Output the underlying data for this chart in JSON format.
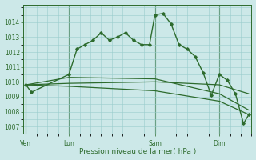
{
  "background_color": "#cce8e8",
  "grid_color": "#99cccc",
  "line_color": "#2d6b2d",
  "xlabel": "Pression niveau de la mer( hPa )",
  "ylim": [
    1006.5,
    1015.2
  ],
  "yticks": [
    1007,
    1008,
    1009,
    1010,
    1011,
    1012,
    1013,
    1014
  ],
  "day_labels": [
    "Ven",
    "Lun",
    "Sam",
    "Dim"
  ],
  "day_positions": [
    0,
    16,
    48,
    72
  ],
  "xlim": [
    -1,
    84
  ],
  "series1_x": [
    0,
    2,
    16,
    19,
    22,
    25,
    28,
    31,
    34,
    37,
    40,
    43,
    46,
    48,
    51,
    54,
    57,
    60,
    63,
    66,
    69,
    72,
    75,
    78,
    81,
    83
  ],
  "series1_y": [
    1009.8,
    1009.3,
    1010.5,
    1012.2,
    1012.5,
    1012.8,
    1013.3,
    1012.8,
    1013.0,
    1013.3,
    1012.8,
    1012.5,
    1012.5,
    1014.5,
    1014.6,
    1013.9,
    1012.5,
    1012.2,
    1011.7,
    1010.6,
    1009.1,
    1010.5,
    1010.1,
    1009.2,
    1007.2,
    1007.8
  ],
  "series2_x": [
    0,
    16,
    48,
    72,
    83
  ],
  "series2_y": [
    1009.8,
    1009.9,
    1010.0,
    1009.8,
    1009.2
  ],
  "series3_x": [
    0,
    16,
    48,
    72,
    83
  ],
  "series3_y": [
    1009.8,
    1009.7,
    1009.4,
    1008.7,
    1007.8
  ],
  "series4_x": [
    0,
    16,
    48,
    72,
    83
  ],
  "series4_y": [
    1009.8,
    1010.3,
    1010.2,
    1009.2,
    1008.1
  ]
}
